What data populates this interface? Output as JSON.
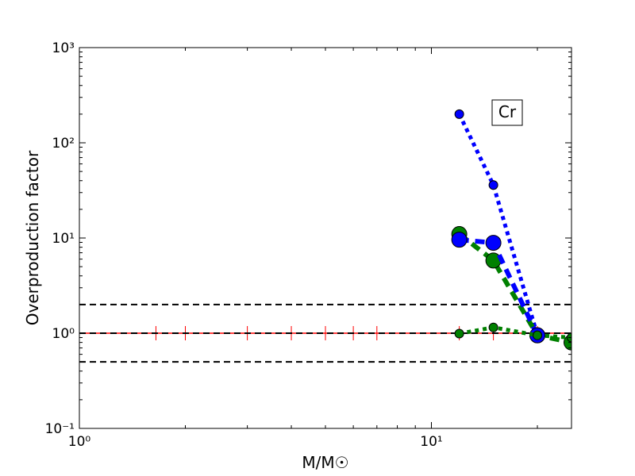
{
  "chart_data": {
    "type": "line",
    "xlabel": "M/M☉",
    "ylabel": "Overproduction factor",
    "annotation": "Cr",
    "log_x": true,
    "log_y": true,
    "xlim": [
      1,
      25
    ],
    "ylim": [
      0.1,
      1000
    ],
    "xticks": [
      {
        "value": 1,
        "label": "10⁰"
      },
      {
        "value": 10,
        "label": "10¹"
      }
    ],
    "yticks": [
      {
        "value": 0.1,
        "label": "10⁻¹"
      },
      {
        "value": 1,
        "label": "10⁰"
      },
      {
        "value": 10,
        "label": "10¹"
      },
      {
        "value": 100,
        "label": "10²"
      },
      {
        "value": 1000,
        "label": "10³"
      }
    ],
    "reference_lines": [
      2,
      1,
      0.5
    ],
    "reference_color": "#000000",
    "series": [
      {
        "color": "#ff0000",
        "style": "solid",
        "marker": "vline",
        "line_width": 1.5,
        "marker_size": 9,
        "x": [
          1,
          1.65,
          2,
          3,
          4,
          5,
          6,
          7,
          12,
          15,
          20,
          25
        ],
        "values": [
          1,
          1,
          1,
          1,
          1,
          1,
          1,
          1,
          1,
          1,
          1,
          1
        ]
      },
      {
        "color": "#0000ff",
        "style": "dotted",
        "marker": "circle",
        "line_width": 5,
        "marker_size": 5.5,
        "x": [
          12,
          15,
          20
        ],
        "values": [
          200,
          36,
          0.95
        ]
      },
      {
        "color": "#008000",
        "style": "dashed",
        "marker": "circle",
        "line_width": 6,
        "marker_size": 9.5,
        "x": [
          12,
          15,
          20,
          25
        ],
        "values": [
          11,
          5.8,
          0.95,
          0.8
        ]
      },
      {
        "color": "#0000ff",
        "style": "dashed",
        "marker": "circle",
        "line_width": 6,
        "marker_size": 9.5,
        "x": [
          12,
          15,
          20
        ],
        "values": [
          9.6,
          8.9,
          0.95
        ]
      },
      {
        "color": "#008000",
        "style": "dotted",
        "marker": "circle",
        "line_width": 5,
        "marker_size": 5.5,
        "x": [
          12,
          15,
          20,
          25
        ],
        "values": [
          0.99,
          1.15,
          0.95,
          0.9
        ]
      }
    ]
  }
}
